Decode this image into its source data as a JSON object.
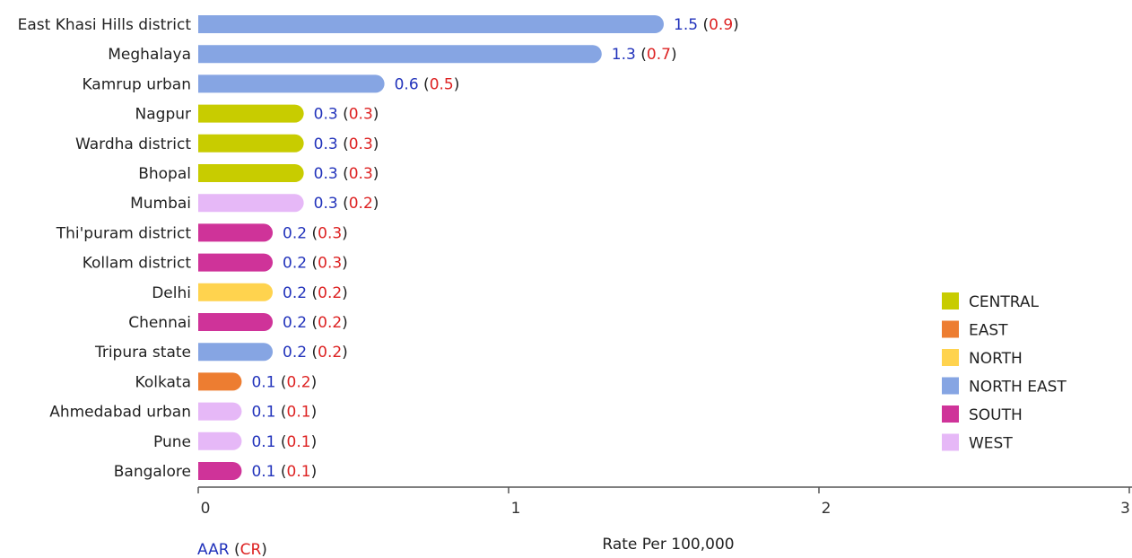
{
  "chart_data": {
    "type": "bar",
    "orientation": "horizontal",
    "title": "",
    "xlabel": "Rate Per 100,000",
    "ylabel": "",
    "xlim": [
      0,
      3
    ],
    "xticks": [
      "0",
      "1",
      "2",
      "3"
    ],
    "grid": false,
    "legend_position": "right",
    "value_note": {
      "aar": "AAR",
      "cr": "CR"
    },
    "regions": [
      {
        "name": "CENTRAL",
        "color": "#c8cc00"
      },
      {
        "name": "EAST",
        "color": "#ed7d31"
      },
      {
        "name": "NORTH",
        "color": "#ffd34e"
      },
      {
        "name": "NORTH EAST",
        "color": "#86a5e3"
      },
      {
        "name": "SOUTH",
        "color": "#cf3399"
      },
      {
        "name": "WEST",
        "color": "#e6b8f7"
      }
    ],
    "bars": [
      {
        "category": "East Khasi Hills district",
        "aar": 1.5,
        "cr": 0.9,
        "region": "NORTH EAST",
        "aar_label": "1.5",
        "cr_label": "0.9"
      },
      {
        "category": "Meghalaya",
        "aar": 1.3,
        "cr": 0.7,
        "region": "NORTH EAST",
        "aar_label": "1.3",
        "cr_label": "0.7"
      },
      {
        "category": "Kamrup urban",
        "aar": 0.6,
        "cr": 0.5,
        "region": "NORTH EAST",
        "aar_label": "0.6",
        "cr_label": "0.5"
      },
      {
        "category": "Nagpur",
        "aar": 0.34,
        "cr": 0.3,
        "region": "CENTRAL",
        "aar_label": "0.3",
        "cr_label": "0.3"
      },
      {
        "category": "Wardha district",
        "aar": 0.34,
        "cr": 0.3,
        "region": "CENTRAL",
        "aar_label": "0.3",
        "cr_label": "0.3"
      },
      {
        "category": "Bhopal",
        "aar": 0.34,
        "cr": 0.3,
        "region": "CENTRAL",
        "aar_label": "0.3",
        "cr_label": "0.3"
      },
      {
        "category": "Mumbai",
        "aar": 0.34,
        "cr": 0.2,
        "region": "WEST",
        "aar_label": "0.3",
        "cr_label": "0.2"
      },
      {
        "category": "Thi'puram district",
        "aar": 0.24,
        "cr": 0.3,
        "region": "SOUTH",
        "aar_label": "0.2",
        "cr_label": "0.3"
      },
      {
        "category": "Kollam district",
        "aar": 0.24,
        "cr": 0.3,
        "region": "SOUTH",
        "aar_label": "0.2",
        "cr_label": "0.3"
      },
      {
        "category": "Delhi",
        "aar": 0.24,
        "cr": 0.2,
        "region": "NORTH",
        "aar_label": "0.2",
        "cr_label": "0.2"
      },
      {
        "category": "Chennai",
        "aar": 0.24,
        "cr": 0.2,
        "region": "SOUTH",
        "aar_label": "0.2",
        "cr_label": "0.2"
      },
      {
        "category": "Tripura state",
        "aar": 0.24,
        "cr": 0.2,
        "region": "NORTH EAST",
        "aar_label": "0.2",
        "cr_label": "0.2"
      },
      {
        "category": "Kolkata",
        "aar": 0.14,
        "cr": 0.2,
        "region": "EAST",
        "aar_label": "0.1",
        "cr_label": "0.2"
      },
      {
        "category": "Ahmedabad urban",
        "aar": 0.14,
        "cr": 0.1,
        "region": "WEST",
        "aar_label": "0.1",
        "cr_label": "0.1"
      },
      {
        "category": "Pune",
        "aar": 0.14,
        "cr": 0.1,
        "region": "WEST",
        "aar_label": "0.1",
        "cr_label": "0.1"
      },
      {
        "category": "Bangalore",
        "aar": 0.14,
        "cr": 0.1,
        "region": "SOUTH",
        "aar_label": "0.1",
        "cr_label": "0.1"
      }
    ]
  }
}
